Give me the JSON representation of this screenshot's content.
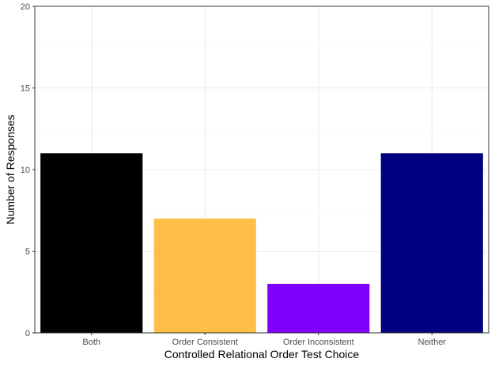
{
  "chart_data": {
    "type": "bar",
    "title": "",
    "xlabel": "Controlled Relational Order Test Choice",
    "ylabel": "Number of Responses",
    "categories": [
      "Both",
      "Order Consistent",
      "Order Inconsistent",
      "Neither"
    ],
    "values": [
      11,
      7,
      3,
      11
    ],
    "colors": [
      "#000000",
      "#FFBF47",
      "#8000FF",
      "#000080"
    ],
    "ylim": [
      0,
      20
    ],
    "yticks": [
      "0",
      "5",
      "10",
      "15",
      "20"
    ],
    "grid": true,
    "legend": "none",
    "theme": "bw"
  }
}
